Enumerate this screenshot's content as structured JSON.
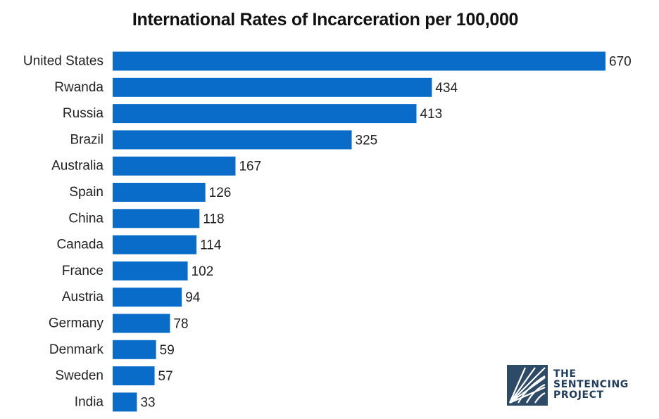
{
  "chart_data": {
    "type": "bar",
    "orientation": "horizontal",
    "title": "International Rates of Incarceration per 100,000",
    "categories": [
      "United States",
      "Rwanda",
      "Russia",
      "Brazil",
      "Australia",
      "Spain",
      "China",
      "Canada",
      "France",
      "Austria",
      "Germany",
      "Denmark",
      "Sweden",
      "India"
    ],
    "values": [
      670,
      434,
      413,
      325,
      167,
      126,
      118,
      114,
      102,
      94,
      78,
      59,
      57,
      33
    ],
    "xlabel": "",
    "ylabel": "",
    "xlim": [
      0,
      670
    ],
    "grid": false,
    "data_labels": true,
    "bar_color": "#0a6cc9"
  },
  "logo": {
    "lines": [
      "THE",
      "SENTENCING",
      "PROJECT"
    ],
    "color": "#1f3d5c"
  }
}
